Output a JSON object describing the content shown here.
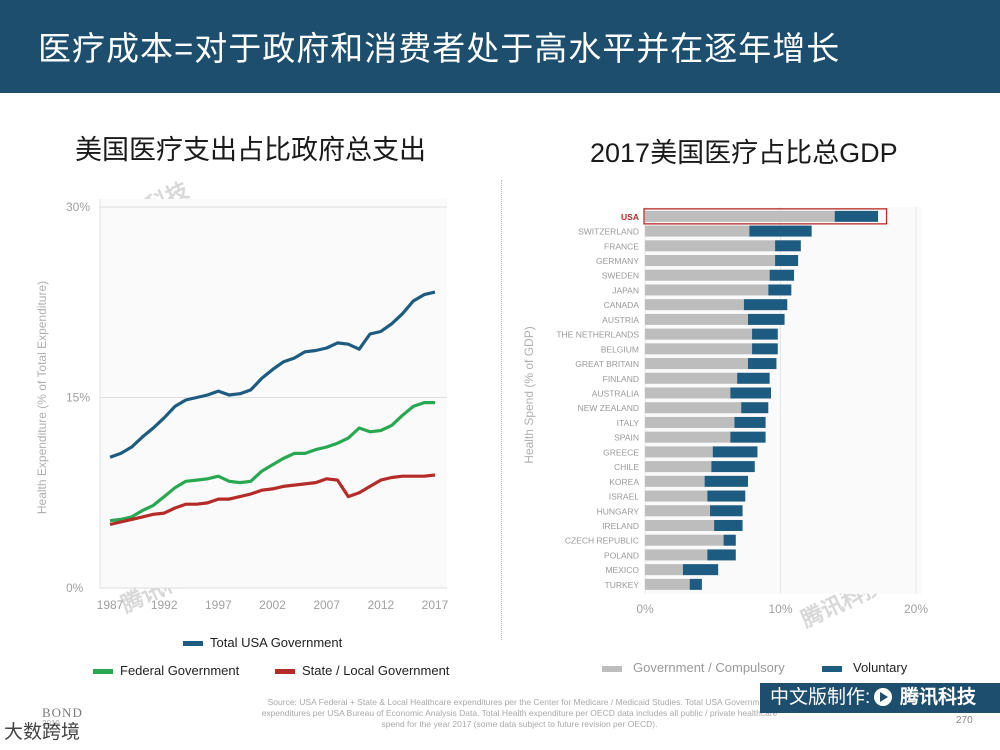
{
  "header": {
    "title": "医疗成本=对于政府和消费者处于高水平并在逐年增长"
  },
  "left_title": "美国医疗支出占比政府总支出",
  "right_title": "2017美国医疗占比总GDP",
  "colors": {
    "header": "#1d4e6e",
    "total": "#1d5b80",
    "federal": "#29a852",
    "state": "#b52b27",
    "gov": "#bdbdbd",
    "voluntary": "#1d5b80",
    "highlight": "#b52b27"
  },
  "chart_data": [
    {
      "type": "line",
      "title": "美国医疗支出占比政府总支出",
      "xlabel": "",
      "ylabel": "Health Expenditure (% of Total Expenditure)",
      "xlim": [
        1987,
        2017
      ],
      "ylim": [
        0,
        30
      ],
      "x_ticks": [
        1987,
        1992,
        1997,
        2002,
        2007,
        2012,
        2017
      ],
      "y_ticks": [
        {
          "value": 0,
          "label": "0%"
        },
        {
          "value": 15,
          "label": "15%"
        },
        {
          "value": 30,
          "label": "30%"
        }
      ],
      "x": [
        1987,
        1988,
        1989,
        1990,
        1991,
        1992,
        1993,
        1994,
        1995,
        1996,
        1997,
        1998,
        1999,
        2000,
        2001,
        2002,
        2003,
        2004,
        2005,
        2006,
        2007,
        2008,
        2009,
        2010,
        2011,
        2012,
        2013,
        2014,
        2015,
        2016,
        2017
      ],
      "series": [
        {
          "name": "Total USA Government",
          "values": [
            10.3,
            10.6,
            11.1,
            11.9,
            12.6,
            13.4,
            14.3,
            14.8,
            15.0,
            15.2,
            15.5,
            15.2,
            15.3,
            15.6,
            16.5,
            17.2,
            17.8,
            18.1,
            18.6,
            18.7,
            18.9,
            19.3,
            19.2,
            18.8,
            20.0,
            20.2,
            20.8,
            21.6,
            22.6,
            23.1,
            23.3
          ]
        },
        {
          "name": "Federal Government",
          "values": [
            5.3,
            5.4,
            5.6,
            6.1,
            6.5,
            7.2,
            7.9,
            8.4,
            8.5,
            8.6,
            8.8,
            8.4,
            8.3,
            8.4,
            9.2,
            9.7,
            10.2,
            10.6,
            10.6,
            10.9,
            11.1,
            11.4,
            11.8,
            12.6,
            12.3,
            12.4,
            12.8,
            13.6,
            14.3,
            14.6,
            14.6
          ]
        },
        {
          "name": "State / Local Government",
          "values": [
            5.0,
            5.2,
            5.4,
            5.6,
            5.8,
            5.9,
            6.3,
            6.6,
            6.6,
            6.7,
            7.0,
            7.0,
            7.2,
            7.4,
            7.7,
            7.8,
            8.0,
            8.1,
            8.2,
            8.3,
            8.6,
            8.5,
            7.2,
            7.5,
            8.0,
            8.5,
            8.7,
            8.8,
            8.8,
            8.8,
            8.9
          ]
        }
      ],
      "legend": [
        "Total USA Government",
        "Federal Government",
        "State / Local Government"
      ],
      "legend_position": "bottom"
    },
    {
      "type": "bar",
      "orientation": "horizontal",
      "stacked": true,
      "title": "2017美国医疗占比总GDP",
      "xlabel": "",
      "ylabel": "Health Spend (% of GDP)",
      "xlim": [
        0,
        20
      ],
      "x_ticks": [
        {
          "value": 0,
          "label": "0%"
        },
        {
          "value": 10,
          "label": "10%"
        },
        {
          "value": 20,
          "label": "20%"
        }
      ],
      "highlight": "USA",
      "categories": [
        "USA",
        "SWITZERLAND",
        "FRANCE",
        "GERMANY",
        "SWEDEN",
        "JAPAN",
        "CANADA",
        "AUSTRIA",
        "THE NETHERLANDS",
        "BELGIUM",
        "GREAT BRITAIN",
        "FINLAND",
        "AUSTRALIA",
        "NEW ZEALAND",
        "ITALY",
        "SPAIN",
        "GREECE",
        "CHILE",
        "KOREA",
        "ISRAEL",
        "HUNGARY",
        "IRELAND",
        "CZECH REPUBLIC",
        "POLAND",
        "MEXICO",
        "TURKEY"
      ],
      "series": [
        {
          "name": "Government / Compulsory",
          "values": [
            14.0,
            7.7,
            9.6,
            9.6,
            9.2,
            9.1,
            7.3,
            7.6,
            7.9,
            7.9,
            7.6,
            6.8,
            6.3,
            7.1,
            6.6,
            6.3,
            5.0,
            4.9,
            4.4,
            4.6,
            4.8,
            5.1,
            5.8,
            4.6,
            2.8,
            3.3
          ]
        },
        {
          "name": "Voluntary",
          "values": [
            3.2,
            4.6,
            1.9,
            1.7,
            1.8,
            1.7,
            3.2,
            2.7,
            1.9,
            1.9,
            2.1,
            2.4,
            3.0,
            2.0,
            2.3,
            2.6,
            3.3,
            3.2,
            3.2,
            2.8,
            2.4,
            2.1,
            0.9,
            2.1,
            2.6,
            0.9
          ]
        }
      ],
      "legend": [
        "Government / Compulsory",
        "Voluntary"
      ],
      "legend_position": "bottom"
    }
  ],
  "footer": {
    "source_line1": "Source: USA Federal + State & Local Healthcare expenditures per the Center for Medicare / Medicaid Studies.  Total USA Government",
    "source_line2": "expenditures per USA Bureau of Economic Analysis Data.  Total Health expenditure per OECD data includes all public / private healthcare",
    "source_line3": "spend for the year 2017 (some data subject to future revision per OECD).",
    "page": "270",
    "bond": "BOND",
    "bond_sub": "2019",
    "credit_prefix": "中文版制作:",
    "credit_brand": "腾讯科技",
    "wm_source": "大数跨境"
  },
  "watermarks": {
    "text": "腾讯科技"
  }
}
